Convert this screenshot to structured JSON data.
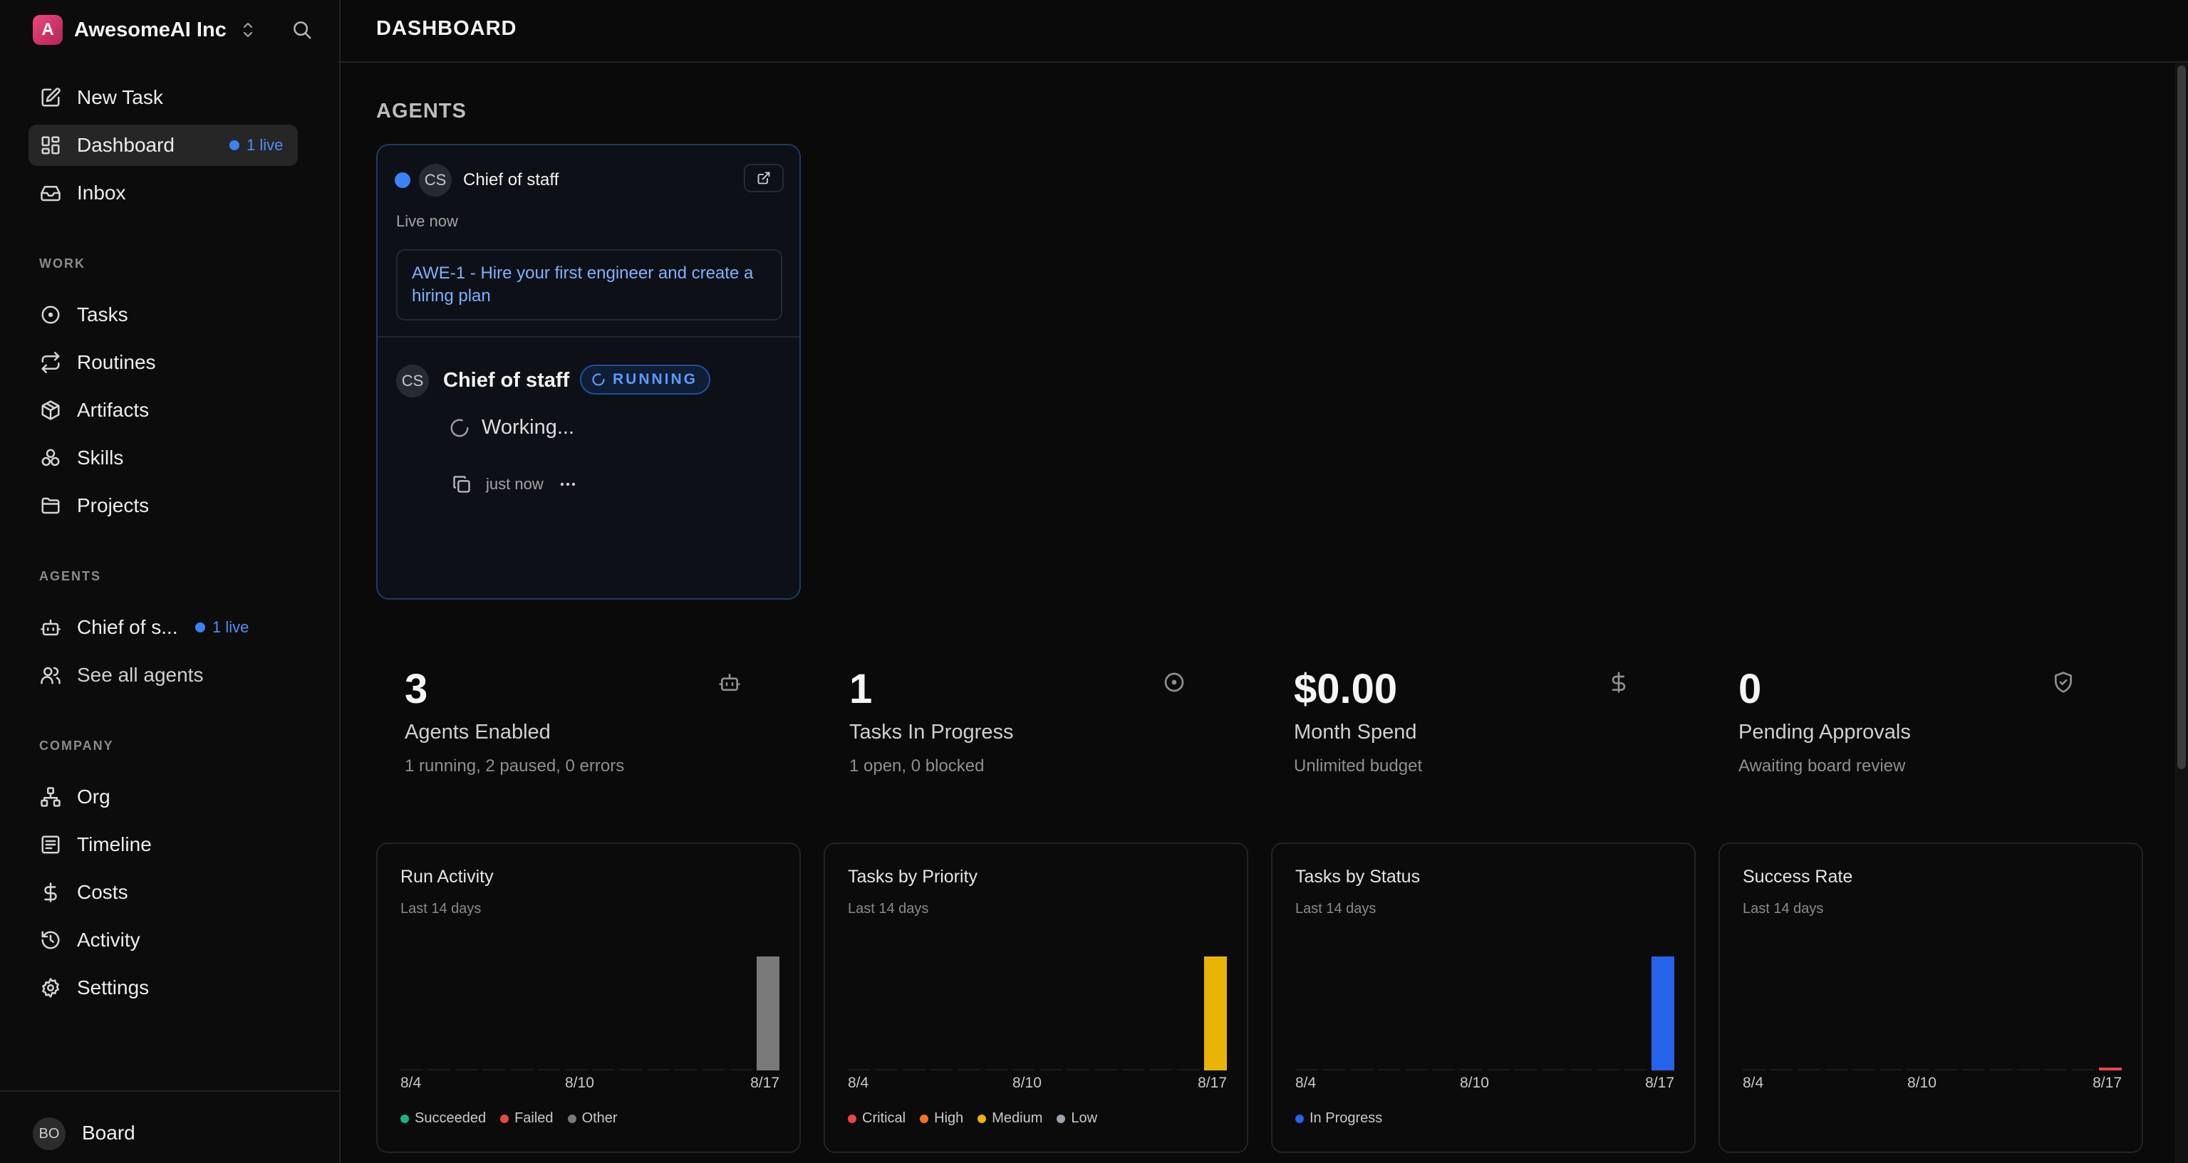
{
  "sidebar": {
    "brand": {
      "initial": "A",
      "name": "AwesomeAI Inc"
    },
    "primary": [
      {
        "label": "New Task"
      },
      {
        "label": "Dashboard",
        "badge": "1 live"
      },
      {
        "label": "Inbox"
      }
    ],
    "work": {
      "heading": "WORK",
      "items": [
        {
          "label": "Tasks"
        },
        {
          "label": "Routines"
        },
        {
          "label": "Artifacts"
        },
        {
          "label": "Skills"
        },
        {
          "label": "Projects"
        }
      ]
    },
    "agents": {
      "heading": "AGENTS",
      "items": [
        {
          "label": "Chief of s...",
          "badge": "1 live"
        },
        {
          "label": "See all agents"
        }
      ]
    },
    "company": {
      "heading": "COMPANY",
      "items": [
        {
          "label": "Org"
        },
        {
          "label": "Timeline"
        },
        {
          "label": "Costs"
        },
        {
          "label": "Activity"
        },
        {
          "label": "Settings"
        }
      ]
    },
    "footer": {
      "initials": "BO",
      "label": "Board"
    }
  },
  "main": {
    "title": "DASHBOARD",
    "agents_heading": "AGENTS",
    "agent_card": {
      "initials": "CS",
      "name": "Chief of staff",
      "status_text": "Live now",
      "task": "AWE-1 - Hire your first engineer and create a hiring plan",
      "run": {
        "initials": "CS",
        "name": "Chief of staff",
        "badge": "RUNNING",
        "working": "Working...",
        "time": "just now"
      }
    },
    "stats": [
      {
        "value": "3",
        "label": "Agents Enabled",
        "sub": "1 running, 2 paused, 0 errors",
        "icon": "bot-icon"
      },
      {
        "value": "1",
        "label": "Tasks In Progress",
        "sub": "1 open, 0 blocked",
        "icon": "circle-dot-icon"
      },
      {
        "value": "$0.00",
        "label": "Month Spend",
        "sub": "Unlimited budget",
        "icon": "dollar-icon"
      },
      {
        "value": "0",
        "label": "Pending Approvals",
        "sub": "Awaiting board review",
        "icon": "shield-check-icon"
      }
    ],
    "colors": {
      "accent": "#3b82f6",
      "succeeded": "#10b981",
      "failed": "#ef4444",
      "other": "#7a7a7a",
      "critical": "#ef4444",
      "high": "#f97316",
      "medium": "#eab308",
      "low": "#9ca3af",
      "in_progress": "#2563eb"
    }
  },
  "chart_data": [
    {
      "type": "bar",
      "title": "Run Activity",
      "subtitle": "Last 14 days",
      "x": [
        "8/4",
        "8/5",
        "8/6",
        "8/7",
        "8/8",
        "8/9",
        "8/10",
        "8/11",
        "8/12",
        "8/13",
        "8/14",
        "8/15",
        "8/16",
        "8/17"
      ],
      "tick_labels": [
        "8/4",
        "8/10",
        "8/17"
      ],
      "stacked": true,
      "series": [
        {
          "name": "Succeeded",
          "color": "#10b981",
          "values": [
            0,
            0,
            0,
            0,
            0,
            0,
            0,
            0,
            0,
            0,
            0,
            0,
            0,
            0
          ]
        },
        {
          "name": "Failed",
          "color": "#ef4444",
          "values": [
            0,
            0,
            0,
            0,
            0,
            0,
            0,
            0,
            0,
            0,
            0,
            0,
            0,
            0
          ]
        },
        {
          "name": "Other",
          "color": "#7a7a7a",
          "values": [
            0,
            0,
            0,
            0,
            0,
            0,
            0,
            0,
            0,
            0,
            0,
            0,
            0,
            1
          ]
        }
      ],
      "ylim": [
        0,
        1
      ]
    },
    {
      "type": "bar",
      "title": "Tasks by Priority",
      "subtitle": "Last 14 days",
      "x": [
        "8/4",
        "8/5",
        "8/6",
        "8/7",
        "8/8",
        "8/9",
        "8/10",
        "8/11",
        "8/12",
        "8/13",
        "8/14",
        "8/15",
        "8/16",
        "8/17"
      ],
      "tick_labels": [
        "8/4",
        "8/10",
        "8/17"
      ],
      "stacked": true,
      "series": [
        {
          "name": "Critical",
          "color": "#ef4444",
          "values": [
            0,
            0,
            0,
            0,
            0,
            0,
            0,
            0,
            0,
            0,
            0,
            0,
            0,
            0
          ]
        },
        {
          "name": "High",
          "color": "#f97316",
          "values": [
            0,
            0,
            0,
            0,
            0,
            0,
            0,
            0,
            0,
            0,
            0,
            0,
            0,
            0
          ]
        },
        {
          "name": "Medium",
          "color": "#eab308",
          "values": [
            0,
            0,
            0,
            0,
            0,
            0,
            0,
            0,
            0,
            0,
            0,
            0,
            0,
            1
          ]
        },
        {
          "name": "Low",
          "color": "#9ca3af",
          "values": [
            0,
            0,
            0,
            0,
            0,
            0,
            0,
            0,
            0,
            0,
            0,
            0,
            0,
            0
          ]
        }
      ],
      "ylim": [
        0,
        1
      ]
    },
    {
      "type": "bar",
      "title": "Tasks by Status",
      "subtitle": "Last 14 days",
      "x": [
        "8/4",
        "8/5",
        "8/6",
        "8/7",
        "8/8",
        "8/9",
        "8/10",
        "8/11",
        "8/12",
        "8/13",
        "8/14",
        "8/15",
        "8/16",
        "8/17"
      ],
      "tick_labels": [
        "8/4",
        "8/10",
        "8/17"
      ],
      "stacked": true,
      "series": [
        {
          "name": "In Progress",
          "color": "#2563eb",
          "values": [
            0,
            0,
            0,
            0,
            0,
            0,
            0,
            0,
            0,
            0,
            0,
            0,
            0,
            1
          ]
        }
      ],
      "ylim": [
        0,
        1
      ]
    },
    {
      "type": "bar",
      "title": "Success Rate",
      "subtitle": "Last 14 days",
      "x": [
        "8/4",
        "8/5",
        "8/6",
        "8/7",
        "8/8",
        "8/9",
        "8/10",
        "8/11",
        "8/12",
        "8/13",
        "8/14",
        "8/15",
        "8/16",
        "8/17"
      ],
      "tick_labels": [
        "8/4",
        "8/10",
        "8/17"
      ],
      "stacked": false,
      "series": [
        {
          "color": "#ef4444",
          "values": [
            0,
            0,
            0,
            0,
            0,
            0,
            0,
            0,
            0,
            0,
            0,
            0,
            0,
            0
          ]
        }
      ],
      "ylim": [
        0,
        1
      ]
    }
  ]
}
